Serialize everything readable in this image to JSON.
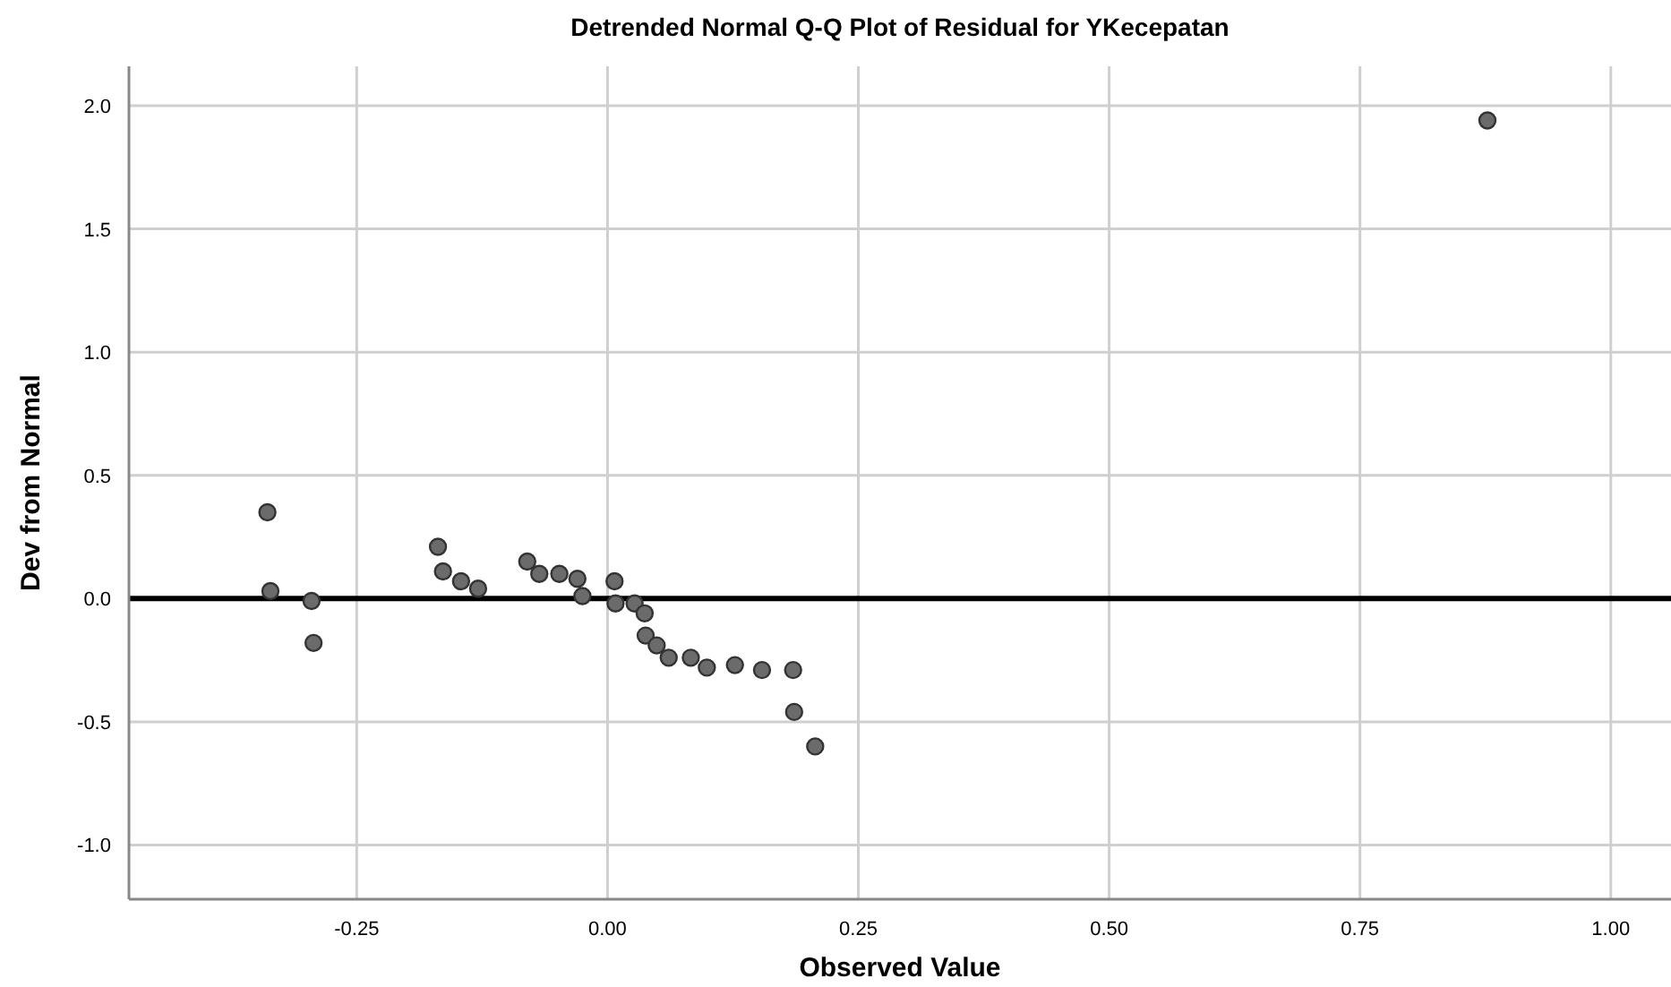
{
  "chart_data": {
    "type": "scatter",
    "title": "Detrended Normal Q-Q Plot of Residual for YKecepatan",
    "xlabel": "Observed Value",
    "ylabel": "Dev from Normal",
    "x": [
      -0.339,
      -0.336,
      -0.295,
      -0.293,
      -0.169,
      -0.164,
      -0.146,
      -0.129,
      -0.08,
      -0.068,
      -0.048,
      -0.03,
      -0.025,
      0.007,
      0.008,
      0.027,
      0.037,
      0.038,
      0.049,
      0.061,
      0.083,
      0.099,
      0.127,
      0.154,
      0.185,
      0.186,
      0.207,
      0.877
    ],
    "values": [
      0.35,
      0.03,
      -0.01,
      -0.18,
      0.21,
      0.11,
      0.07,
      0.04,
      0.15,
      0.1,
      0.1,
      0.08,
      0.01,
      0.07,
      -0.02,
      -0.02,
      -0.06,
      -0.15,
      -0.19,
      -0.24,
      -0.24,
      -0.28,
      -0.27,
      -0.29,
      -0.29,
      -0.46,
      -0.6,
      1.94
    ],
    "color": "#6b6b6b",
    "marker": "circle",
    "xlim": [
      -0.477,
      1.06
    ],
    "xticks": [
      {
        "value": -0.25,
        "label": "-0.25"
      },
      {
        "value": 0,
        "label": "0.00"
      },
      {
        "value": 0.25,
        "label": "0.25"
      },
      {
        "value": 0.5,
        "label": "0.50"
      },
      {
        "value": 0.75,
        "label": "0.75"
      },
      {
        "value": 1,
        "label": "1.00"
      }
    ],
    "ylim": [
      -1.22,
      2.16
    ],
    "yticks": [
      {
        "value": -1,
        "label": "-1.0"
      },
      {
        "value": -0.5,
        "label": "-0.5"
      },
      {
        "value": 0,
        "label": "0.0"
      },
      {
        "value": 0.5,
        "label": "0.5"
      },
      {
        "value": 1,
        "label": "1.0"
      },
      {
        "value": 1.5,
        "label": "1.5"
      },
      {
        "value": 2,
        "label": "2.0"
      }
    ],
    "grid": true,
    "ref_lines": [
      {
        "axis": "y",
        "value": 0,
        "color": "#000000"
      }
    ]
  }
}
